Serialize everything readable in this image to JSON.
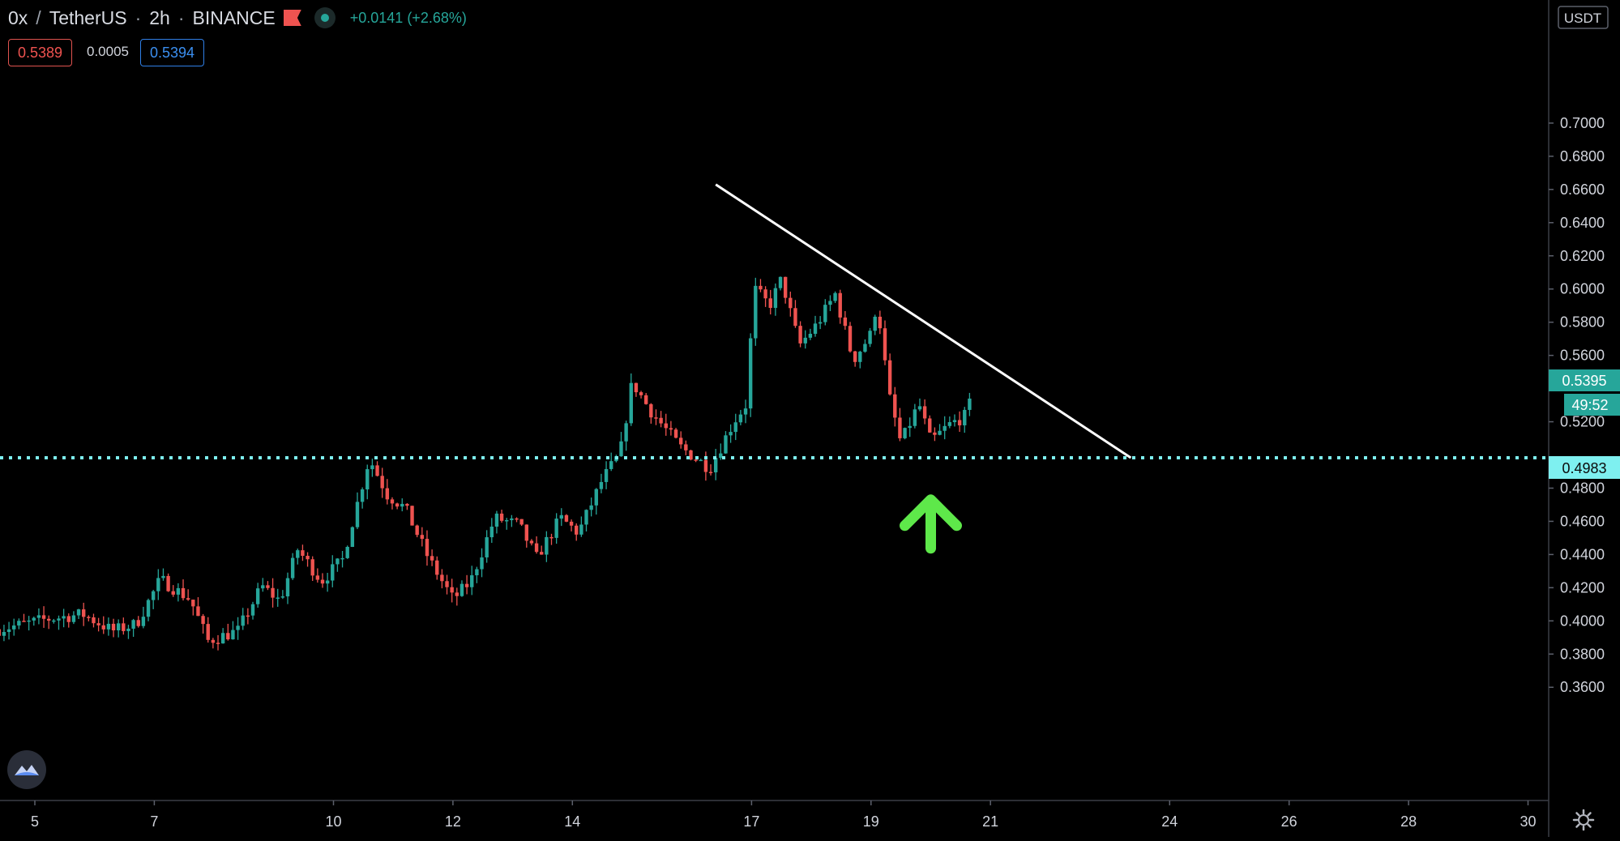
{
  "header": {
    "symbol": "0x",
    "quote_currency": "TetherUS",
    "interval": "2h",
    "exchange": "BINANCE",
    "change": "+0.0141 (+2.68%)"
  },
  "quote": {
    "bid": "0.5389",
    "spread": "0.0005",
    "ask": "0.5394"
  },
  "currency_label": "USDT",
  "colors": {
    "up": "#26a69a",
    "down": "#ef5350",
    "level_line": "#7ef0f0",
    "trendline": "#ffffff",
    "arrow": "#5ee84a",
    "background": "#000000"
  },
  "icons": {
    "flag": "flag-icon",
    "market_status": "dot-icon",
    "logo": "tradingview-logo-icon",
    "settings": "gear-icon",
    "arrow": "arrow-up-icon"
  },
  "chart_data": {
    "type": "candlestick",
    "y_axis": {
      "min": 0.35,
      "max": 0.72,
      "ticks": [
        "0.7000",
        "0.6800",
        "0.6600",
        "0.6400",
        "0.6200",
        "0.6000",
        "0.5800",
        "0.5600",
        "0.5200",
        "0.4800",
        "0.4600",
        "0.4400",
        "0.4200",
        "0.4000",
        "0.3800",
        "0.3600"
      ]
    },
    "x_axis": {
      "ticks": [
        {
          "label": "5",
          "day": 5
        },
        {
          "label": "7",
          "day": 7
        },
        {
          "label": "10",
          "day": 10
        },
        {
          "label": "12",
          "day": 12
        },
        {
          "label": "14",
          "day": 14
        },
        {
          "label": "17",
          "day": 17
        },
        {
          "label": "19",
          "day": 19
        },
        {
          "label": "21",
          "day": 21
        },
        {
          "label": "24",
          "day": 24
        },
        {
          "label": "26",
          "day": 26
        },
        {
          "label": "28",
          "day": 28
        },
        {
          "label": "30",
          "day": 30
        }
      ]
    },
    "price_labels": {
      "last_price": "0.5395",
      "countdown": "49:52",
      "level": "0.4983"
    },
    "level_price": 0.4983,
    "trendline": {
      "start": {
        "day": 16.4,
        "price": 0.663
      },
      "end": {
        "day": 23.35,
        "price": 0.4983
      }
    },
    "arrow_marker": {
      "day": 20.0,
      "price": 0.474
    },
    "path": [
      {
        "day": 4.4,
        "price": 0.395
      },
      {
        "day": 5.2,
        "price": 0.401
      },
      {
        "day": 5.8,
        "price": 0.404
      },
      {
        "day": 6.3,
        "price": 0.394
      },
      {
        "day": 6.7,
        "price": 0.398
      },
      {
        "day": 7.1,
        "price": 0.425
      },
      {
        "day": 7.6,
        "price": 0.413
      },
      {
        "day": 7.9,
        "price": 0.388
      },
      {
        "day": 8.4,
        "price": 0.394
      },
      {
        "day": 8.8,
        "price": 0.421
      },
      {
        "day": 9.1,
        "price": 0.412
      },
      {
        "day": 9.4,
        "price": 0.443
      },
      {
        "day": 9.8,
        "price": 0.424
      },
      {
        "day": 10.15,
        "price": 0.437
      },
      {
        "day": 10.6,
        "price": 0.498
      },
      {
        "day": 10.9,
        "price": 0.476
      },
      {
        "day": 11.2,
        "price": 0.468
      },
      {
        "day": 11.6,
        "price": 0.437
      },
      {
        "day": 12.0,
        "price": 0.413
      },
      {
        "day": 12.3,
        "price": 0.424
      },
      {
        "day": 12.7,
        "price": 0.462
      },
      {
        "day": 13.1,
        "price": 0.458
      },
      {
        "day": 13.4,
        "price": 0.438
      },
      {
        "day": 13.8,
        "price": 0.462
      },
      {
        "day": 14.1,
        "price": 0.453
      },
      {
        "day": 14.5,
        "price": 0.485
      },
      {
        "day": 14.8,
        "price": 0.501
      },
      {
        "day": 15.0,
        "price": 0.544
      },
      {
        "day": 15.3,
        "price": 0.527
      },
      {
        "day": 15.8,
        "price": 0.505
      },
      {
        "day": 16.3,
        "price": 0.492
      },
      {
        "day": 16.7,
        "price": 0.52
      },
      {
        "day": 16.9,
        "price": 0.53
      },
      {
        "day": 17.05,
        "price": 0.6
      },
      {
        "day": 17.3,
        "price": 0.59
      },
      {
        "day": 17.5,
        "price": 0.606
      },
      {
        "day": 17.8,
        "price": 0.566
      },
      {
        "day": 18.1,
        "price": 0.579
      },
      {
        "day": 18.4,
        "price": 0.597
      },
      {
        "day": 18.7,
        "price": 0.557
      },
      {
        "day": 19.0,
        "price": 0.573
      },
      {
        "day": 19.1,
        "price": 0.593
      },
      {
        "day": 19.3,
        "price": 0.536
      },
      {
        "day": 19.5,
        "price": 0.507
      },
      {
        "day": 19.8,
        "price": 0.531
      },
      {
        "day": 20.0,
        "price": 0.508
      },
      {
        "day": 20.3,
        "price": 0.518
      },
      {
        "day": 20.6,
        "price": 0.524
      },
      {
        "day": 20.72,
        "price": 0.5395
      }
    ]
  }
}
